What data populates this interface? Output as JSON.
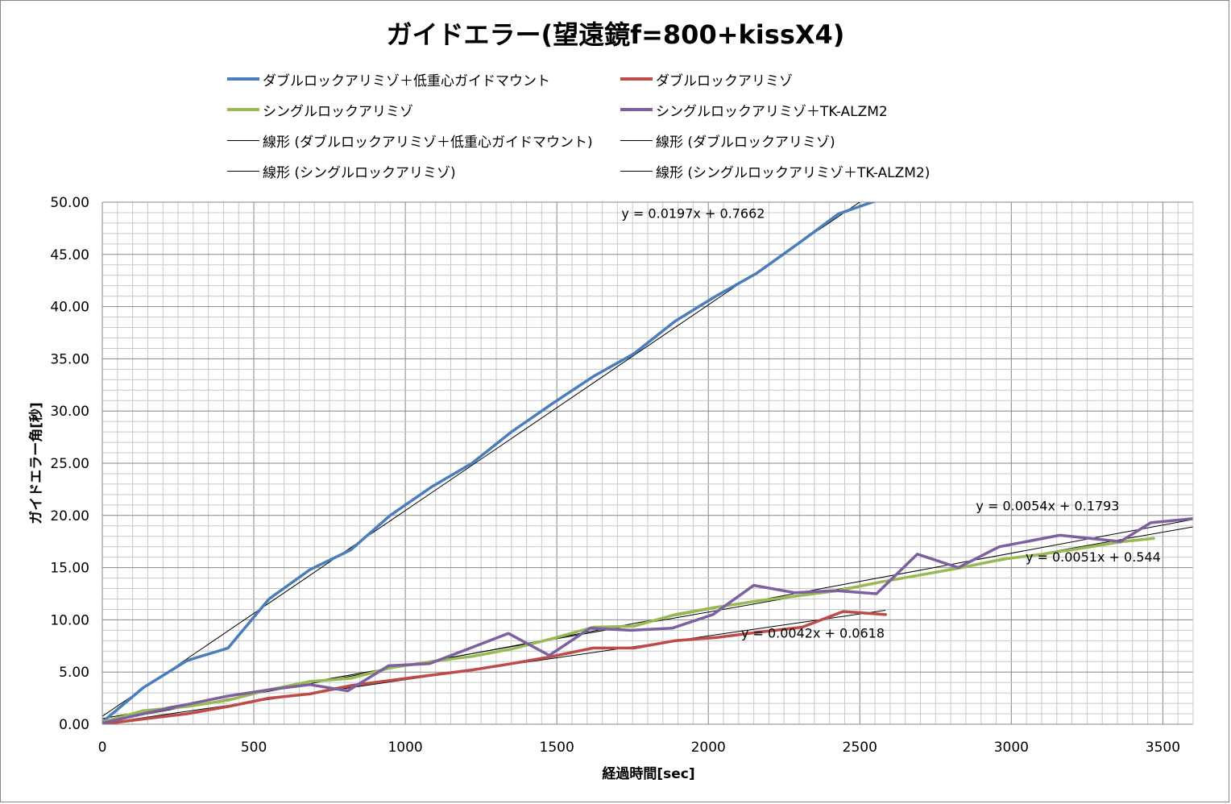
{
  "chart_data": {
    "type": "line",
    "title": "ガイドエラー(望遠鏡f=800+kissX4)",
    "xlabel": "経過時間[sec]",
    "ylabel": "ガイドエラー角[秒]",
    "xlim": [
      0,
      3600
    ],
    "ylim": [
      0,
      50
    ],
    "x_ticks": [
      0,
      500,
      1000,
      1500,
      2000,
      2500,
      3000,
      3500
    ],
    "x_tick_labels": [
      "0",
      "500",
      "1000",
      "1500",
      "2000",
      "2500",
      "3000",
      "3500"
    ],
    "y_ticks": [
      0,
      5,
      10,
      15,
      20,
      25,
      30,
      35,
      40,
      45,
      50
    ],
    "y_tick_labels": [
      "0.00",
      "5.00",
      "10.00",
      "15.00",
      "20.00",
      "25.00",
      "30.00",
      "35.00",
      "40.00",
      "45.00",
      "50.00"
    ],
    "grid": true,
    "legend_position": "top",
    "series": [
      {
        "name": "ダブルロックアリミゾ＋低重心ガイドマウント",
        "color": "#4a7ebb",
        "x": [
          0,
          135,
          280,
          415,
          550,
          685,
          820,
          950,
          1085,
          1220,
          1350,
          1485,
          1620,
          1755,
          1890,
          2025,
          2160,
          2295,
          2430,
          2560
        ],
        "y": [
          0.2,
          3.5,
          6.1,
          7.3,
          12.0,
          14.8,
          16.7,
          20.0,
          22.7,
          25.0,
          28.0,
          30.7,
          33.3,
          35.5,
          38.6,
          41.0,
          43.2,
          46.0,
          48.9,
          50.2
        ]
      },
      {
        "name": "ダブルロックアリミゾ",
        "color": "#be4b48",
        "x": [
          0,
          135,
          280,
          415,
          550,
          685,
          820,
          950,
          1085,
          1220,
          1350,
          1485,
          1620,
          1755,
          1890,
          2025,
          2160,
          2310,
          2445,
          2585
        ],
        "y": [
          0.0,
          0.5,
          1.0,
          1.7,
          2.5,
          2.9,
          3.7,
          4.2,
          4.7,
          5.2,
          5.8,
          6.5,
          7.3,
          7.3,
          8.0,
          8.3,
          8.8,
          9.3,
          10.8,
          10.5
        ]
      },
      {
        "name": "シングルロックアリミゾ",
        "color": "#98b954",
        "x": [
          0,
          135,
          280,
          415,
          550,
          685,
          820,
          950,
          1085,
          1220,
          1350,
          1485,
          1620,
          1755,
          1890,
          2025,
          2160,
          2295,
          2430,
          2565,
          2700,
          2835,
          2970,
          3105,
          3240,
          3370,
          3470
        ],
        "y": [
          0.2,
          1.3,
          1.7,
          2.3,
          3.3,
          4.1,
          4.4,
          5.4,
          6.0,
          6.5,
          7.2,
          8.2,
          9.3,
          9.4,
          10.5,
          11.2,
          11.8,
          12.3,
          12.8,
          13.6,
          14.3,
          15.0,
          15.8,
          16.3,
          16.9,
          17.5,
          17.8
        ]
      },
      {
        "name": "シングルロックアリミゾ＋TK-ALZM2",
        "color": "#7d60a0",
        "x": [
          0,
          135,
          280,
          415,
          550,
          685,
          810,
          945,
          1080,
          1215,
          1340,
          1475,
          1610,
          1745,
          1880,
          2015,
          2150,
          2285,
          2420,
          2555,
          2690,
          2825,
          2960,
          3160,
          3360,
          3460,
          3600
        ],
        "y": [
          0.1,
          1.0,
          1.9,
          2.7,
          3.3,
          3.8,
          3.2,
          5.6,
          5.8,
          7.3,
          8.7,
          6.6,
          9.2,
          9.0,
          9.2,
          10.5,
          13.3,
          12.6,
          12.8,
          12.5,
          16.3,
          15.0,
          17.0,
          18.1,
          17.5,
          19.3,
          19.7
        ]
      }
    ],
    "trendlines": [
      {
        "name": "線形 (ダブルロックアリミゾ＋低重心ガイドマウント)",
        "slope": 0.0197,
        "intercept": 0.7662,
        "x_range": [
          0,
          2750
        ],
        "equation": "y = 0.0197x + 0.7662"
      },
      {
        "name": "線形 (ダブルロックアリミゾ)",
        "slope": 0.0042,
        "intercept": 0.0618,
        "x_range": [
          0,
          2585
        ],
        "equation": "y = 0.0042x + 0.0618"
      },
      {
        "name": "線形 (シングルロックアリミゾ)",
        "slope": 0.0051,
        "intercept": 0.544,
        "x_range": [
          0,
          3600
        ],
        "equation": "y = 0.0051x + 0.544"
      },
      {
        "name": "線形 (シングルロックアリミゾ＋TK-ALZM2)",
        "slope": 0.0054,
        "intercept": 0.1793,
        "x_range": [
          0,
          3600
        ],
        "equation": "y = 0.0054x + 0.1793"
      }
    ]
  }
}
